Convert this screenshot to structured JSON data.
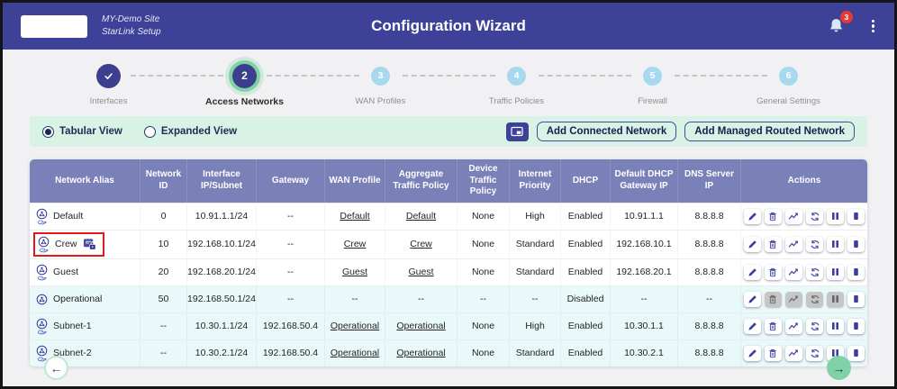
{
  "header": {
    "site_line1": "MY-Demo Site",
    "site_line2": "StarLink Setup",
    "title": "Configuration Wizard",
    "notification_count": "3"
  },
  "stepper": {
    "steps": [
      {
        "number": "1",
        "label": "Interfaces",
        "state": "done"
      },
      {
        "number": "2",
        "label": "Access Networks",
        "state": "active"
      },
      {
        "number": "3",
        "label": "WAN Profiles",
        "state": "todo"
      },
      {
        "number": "4",
        "label": "Traffic Policies",
        "state": "todo"
      },
      {
        "number": "5",
        "label": "Firewall",
        "state": "todo"
      },
      {
        "number": "6",
        "label": "General Settings",
        "state": "todo"
      }
    ]
  },
  "toolbar": {
    "view_options": [
      {
        "label": "Tabular View",
        "selected": true
      },
      {
        "label": "Expanded View",
        "selected": false
      }
    ],
    "expand_icon": "window-icon",
    "add_connected_label": "Add Connected Network",
    "add_managed_label": "Add Managed Routed Network"
  },
  "table": {
    "columns": [
      "Network Alias",
      "Network ID",
      "Interface IP/Subnet",
      "Gateway",
      "WAN Profile",
      "Aggregate Traffic Policy",
      "Device Traffic Policy",
      "Internet Priority",
      "DHCP",
      "Default DHCP Gateway IP",
      "DNS Server IP",
      "Actions"
    ],
    "action_icons": [
      "edit",
      "delete",
      "statistics",
      "refresh",
      "pause",
      "stop"
    ],
    "rows": [
      {
        "alias": "Default",
        "icon": "network-share",
        "has_lock": false,
        "highlighted": false,
        "tinted": false,
        "network_id": "0",
        "interface_ip": "10.91.1.1/24",
        "gateway": "--",
        "wan_profile": "Default",
        "aggregate_policy": "Default",
        "device_policy": "None",
        "internet_priority": "High",
        "dhcp": "Enabled",
        "dhcp_gateway_ip": "10.91.1.1",
        "dns_server_ip": "8.8.8.8",
        "disabled_actions": []
      },
      {
        "alias": "Crew",
        "icon": "network-share",
        "has_lock": true,
        "highlighted": true,
        "tinted": false,
        "network_id": "10",
        "interface_ip": "192.168.10.1/24",
        "gateway": "--",
        "wan_profile": "Crew",
        "aggregate_policy": "Crew",
        "device_policy": "None",
        "internet_priority": "Standard",
        "dhcp": "Enabled",
        "dhcp_gateway_ip": "192.168.10.1",
        "dns_server_ip": "8.8.8.8",
        "disabled_actions": []
      },
      {
        "alias": "Guest",
        "icon": "network-share",
        "has_lock": false,
        "highlighted": false,
        "tinted": false,
        "network_id": "20",
        "interface_ip": "192.168.20.1/24",
        "gateway": "--",
        "wan_profile": "Guest",
        "aggregate_policy": "Guest",
        "device_policy": "None",
        "internet_priority": "Standard",
        "dhcp": "Enabled",
        "dhcp_gateway_ip": "192.168.20.1",
        "dns_server_ip": "8.8.8.8",
        "disabled_actions": []
      },
      {
        "alias": "Operational",
        "icon": "network",
        "has_lock": false,
        "highlighted": false,
        "tinted": true,
        "network_id": "50",
        "interface_ip": "192.168.50.1/24",
        "gateway": "--",
        "wan_profile": "--",
        "aggregate_policy": "--",
        "device_policy": "--",
        "internet_priority": "--",
        "dhcp": "Disabled",
        "dhcp_gateway_ip": "--",
        "dns_server_ip": "--",
        "disabled_actions": [
          "delete",
          "statistics",
          "refresh",
          "pause"
        ]
      },
      {
        "alias": "Subnet-1",
        "icon": "network-share",
        "has_lock": false,
        "highlighted": false,
        "tinted": true,
        "network_id": "--",
        "interface_ip": "10.30.1.1/24",
        "gateway": "192.168.50.4",
        "wan_profile": "Operational",
        "aggregate_policy": "Operational",
        "device_policy": "None",
        "internet_priority": "High",
        "dhcp": "Enabled",
        "dhcp_gateway_ip": "10.30.1.1",
        "dns_server_ip": "8.8.8.8",
        "disabled_actions": []
      },
      {
        "alias": "Subnet-2",
        "icon": "network-share",
        "has_lock": false,
        "highlighted": false,
        "tinted": true,
        "network_id": "--",
        "interface_ip": "10.30.2.1/24",
        "gateway": "192.168.50.4",
        "wan_profile": "Operational",
        "aggregate_policy": "Operational",
        "device_policy": "None",
        "internet_priority": "Standard",
        "dhcp": "Enabled",
        "dhcp_gateway_ip": "10.30.2.1",
        "dns_server_ip": "8.8.8.8",
        "disabled_actions": []
      }
    ]
  },
  "footer": {
    "prev_arrow": "←",
    "next_arrow": "→"
  },
  "colors": {
    "header_bg": "#3d4298",
    "accent_green": "#7ed2a6",
    "active_ring": "#80d1a3",
    "step_todo_blue": "#a8d8f0",
    "toolbar_bg": "#d8f2e6",
    "table_header_bg": "#7a80b8",
    "row_tint": "#e9f8f9",
    "highlight_red": "#e41a1a",
    "icon_indigo": "#3b3f9e",
    "badge_red": "#e53935"
  }
}
